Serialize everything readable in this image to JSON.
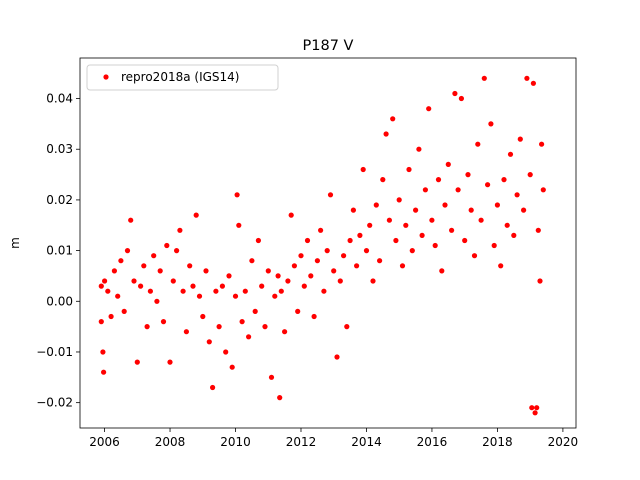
{
  "chart_data": {
    "type": "scatter",
    "title": "P187 V",
    "xlabel": "",
    "ylabel": "m",
    "xlim": [
      2005.25,
      2020.4
    ],
    "ylim": [
      -0.025,
      0.048
    ],
    "xticks": [
      2006,
      2008,
      2010,
      2012,
      2014,
      2016,
      2018,
      2020
    ],
    "xtick_labels": [
      "2006",
      "2008",
      "2010",
      "2012",
      "2014",
      "2016",
      "2018",
      "2020"
    ],
    "yticks": [
      -0.02,
      -0.01,
      0.0,
      0.01,
      0.02,
      0.03,
      0.04
    ],
    "ytick_labels": [
      "−0.02",
      "−0.01",
      "0.00",
      "0.01",
      "0.02",
      "0.03",
      "0.04"
    ],
    "grid": false,
    "legend": {
      "placement": "top-left",
      "entries": [
        "repro2018a (IGS14)"
      ]
    },
    "series": [
      {
        "name": "repro2018a (IGS14)",
        "color": "#ff0000",
        "marker": "circle",
        "points": [
          [
            2005.9,
            0.003
          ],
          [
            2005.9,
            -0.004
          ],
          [
            2005.95,
            -0.01
          ],
          [
            2005.97,
            -0.014
          ],
          [
            2006.0,
            0.004
          ],
          [
            2006.1,
            0.002
          ],
          [
            2006.2,
            -0.003
          ],
          [
            2006.3,
            0.006
          ],
          [
            2006.4,
            0.001
          ],
          [
            2006.5,
            0.008
          ],
          [
            2006.6,
            -0.002
          ],
          [
            2006.7,
            0.01
          ],
          [
            2006.8,
            0.016
          ],
          [
            2006.9,
            0.004
          ],
          [
            2007.0,
            -0.012
          ],
          [
            2007.1,
            0.003
          ],
          [
            2007.2,
            0.007
          ],
          [
            2007.3,
            -0.005
          ],
          [
            2007.4,
            0.002
          ],
          [
            2007.5,
            0.009
          ],
          [
            2007.6,
            0.0
          ],
          [
            2007.7,
            0.006
          ],
          [
            2007.8,
            -0.004
          ],
          [
            2007.9,
            0.011
          ],
          [
            2008.0,
            -0.012
          ],
          [
            2008.1,
            0.004
          ],
          [
            2008.2,
            0.01
          ],
          [
            2008.3,
            0.014
          ],
          [
            2008.4,
            0.002
          ],
          [
            2008.5,
            -0.006
          ],
          [
            2008.6,
            0.007
          ],
          [
            2008.7,
            0.003
          ],
          [
            2008.8,
            0.017
          ],
          [
            2008.9,
            0.001
          ],
          [
            2009.0,
            -0.003
          ],
          [
            2009.1,
            0.006
          ],
          [
            2009.2,
            -0.008
          ],
          [
            2009.3,
            -0.017
          ],
          [
            2009.4,
            0.002
          ],
          [
            2009.5,
            -0.005
          ],
          [
            2009.6,
            0.003
          ],
          [
            2009.7,
            -0.01
          ],
          [
            2009.8,
            0.005
          ],
          [
            2009.9,
            -0.013
          ],
          [
            2010.0,
            0.001
          ],
          [
            2010.05,
            0.021
          ],
          [
            2010.1,
            0.015
          ],
          [
            2010.2,
            -0.004
          ],
          [
            2010.3,
            0.002
          ],
          [
            2010.4,
            -0.007
          ],
          [
            2010.5,
            0.008
          ],
          [
            2010.6,
            -0.002
          ],
          [
            2010.7,
            0.012
          ],
          [
            2010.8,
            0.003
          ],
          [
            2010.9,
            -0.005
          ],
          [
            2011.0,
            0.006
          ],
          [
            2011.1,
            -0.015
          ],
          [
            2011.2,
            0.001
          ],
          [
            2011.3,
            0.005
          ],
          [
            2011.35,
            -0.019
          ],
          [
            2011.4,
            0.002
          ],
          [
            2011.5,
            -0.006
          ],
          [
            2011.6,
            0.004
          ],
          [
            2011.7,
            0.017
          ],
          [
            2011.8,
            0.007
          ],
          [
            2011.9,
            -0.002
          ],
          [
            2012.0,
            0.009
          ],
          [
            2012.1,
            0.003
          ],
          [
            2012.2,
            0.012
          ],
          [
            2012.3,
            0.005
          ],
          [
            2012.4,
            -0.003
          ],
          [
            2012.5,
            0.008
          ],
          [
            2012.6,
            0.014
          ],
          [
            2012.7,
            0.002
          ],
          [
            2012.8,
            0.01
          ],
          [
            2012.9,
            0.021
          ],
          [
            2013.0,
            0.006
          ],
          [
            2013.1,
            -0.011
          ],
          [
            2013.2,
            0.004
          ],
          [
            2013.3,
            0.009
          ],
          [
            2013.4,
            -0.005
          ],
          [
            2013.5,
            0.012
          ],
          [
            2013.6,
            0.018
          ],
          [
            2013.7,
            0.007
          ],
          [
            2013.8,
            0.013
          ],
          [
            2013.9,
            0.026
          ],
          [
            2014.0,
            0.01
          ],
          [
            2014.1,
            0.015
          ],
          [
            2014.2,
            0.004
          ],
          [
            2014.3,
            0.019
          ],
          [
            2014.4,
            0.008
          ],
          [
            2014.5,
            0.024
          ],
          [
            2014.6,
            0.033
          ],
          [
            2014.7,
            0.016
          ],
          [
            2014.8,
            0.036
          ],
          [
            2014.9,
            0.012
          ],
          [
            2015.0,
            0.02
          ],
          [
            2015.1,
            0.007
          ],
          [
            2015.2,
            0.015
          ],
          [
            2015.3,
            0.026
          ],
          [
            2015.4,
            0.01
          ],
          [
            2015.5,
            0.018
          ],
          [
            2015.6,
            0.03
          ],
          [
            2015.7,
            0.013
          ],
          [
            2015.8,
            0.022
          ],
          [
            2015.9,
            0.038
          ],
          [
            2016.0,
            0.016
          ],
          [
            2016.1,
            0.011
          ],
          [
            2016.2,
            0.024
          ],
          [
            2016.3,
            0.006
          ],
          [
            2016.4,
            0.019
          ],
          [
            2016.5,
            0.027
          ],
          [
            2016.6,
            0.014
          ],
          [
            2016.7,
            0.041
          ],
          [
            2016.8,
            0.022
          ],
          [
            2016.9,
            0.04
          ],
          [
            2017.0,
            0.012
          ],
          [
            2017.1,
            0.025
          ],
          [
            2017.2,
            0.018
          ],
          [
            2017.3,
            0.009
          ],
          [
            2017.4,
            0.031
          ],
          [
            2017.5,
            0.016
          ],
          [
            2017.6,
            0.044
          ],
          [
            2017.7,
            0.023
          ],
          [
            2017.8,
            0.035
          ],
          [
            2017.9,
            0.011
          ],
          [
            2018.0,
            0.019
          ],
          [
            2018.1,
            0.007
          ],
          [
            2018.2,
            0.024
          ],
          [
            2018.3,
            0.015
          ],
          [
            2018.4,
            0.029
          ],
          [
            2018.5,
            0.013
          ],
          [
            2018.6,
            0.021
          ],
          [
            2018.7,
            0.032
          ],
          [
            2018.8,
            0.018
          ],
          [
            2018.9,
            0.044
          ],
          [
            2019.0,
            0.025
          ],
          [
            2019.05,
            -0.021
          ],
          [
            2019.1,
            0.043
          ],
          [
            2019.15,
            -0.022
          ],
          [
            2019.2,
            -0.021
          ],
          [
            2019.25,
            0.014
          ],
          [
            2019.3,
            0.004
          ],
          [
            2019.35,
            0.031
          ],
          [
            2019.4,
            0.022
          ]
        ]
      }
    ]
  }
}
